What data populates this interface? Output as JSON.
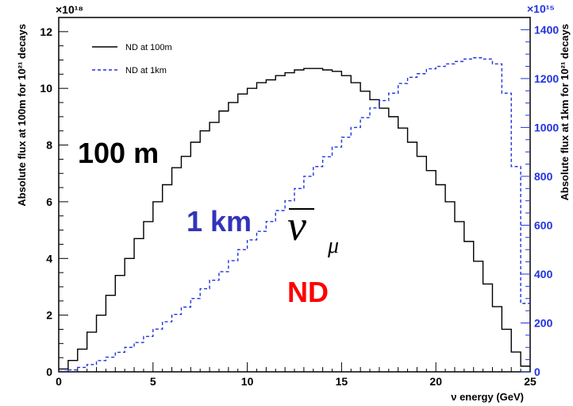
{
  "chart_data": {
    "type": "line",
    "xlabel": "ν energy (GeV)",
    "ylabel": "Absolute flux at 100m for 10²¹ decays",
    "y2label": "Absolute flux at 1km for 10²¹ decays",
    "xlim": [
      0,
      25
    ],
    "ylim": [
      0,
      12.5
    ],
    "y2lim": [
      0,
      1450
    ],
    "y_multiplier": "×10¹⁸",
    "y2_multiplier": "×10¹⁵",
    "x_ticks": [
      "0",
      "5",
      "10",
      "15",
      "20",
      "25"
    ],
    "y_ticks": [
      "0",
      "2",
      "4",
      "6",
      "8",
      "10",
      "12"
    ],
    "y2_ticks": [
      "0",
      "200",
      "400",
      "600",
      "800",
      "1000",
      "1200",
      "1400"
    ],
    "bin_width": 0.5,
    "x": [
      0.25,
      0.75,
      1.25,
      1.75,
      2.25,
      2.75,
      3.25,
      3.75,
      4.25,
      4.75,
      5.25,
      5.75,
      6.25,
      6.75,
      7.25,
      7.75,
      8.25,
      8.75,
      9.25,
      9.75,
      10.25,
      10.75,
      11.25,
      11.75,
      12.25,
      12.75,
      13.25,
      13.75,
      14.25,
      14.75,
      15.25,
      15.75,
      16.25,
      16.75,
      17.25,
      17.75,
      18.25,
      18.75,
      19.25,
      19.75,
      20.25,
      20.75,
      21.25,
      21.75,
      22.25,
      22.75,
      23.25,
      23.75,
      24.25,
      24.75
    ],
    "series": [
      {
        "name": "ND at 100m",
        "axis": "left",
        "color": "#000000",
        "style": "solid",
        "values": [
          0.1,
          0.4,
          0.8,
          1.4,
          2.0,
          2.7,
          3.4,
          4.0,
          4.7,
          5.3,
          6.0,
          6.6,
          7.2,
          7.6,
          8.1,
          8.5,
          8.8,
          9.2,
          9.5,
          9.8,
          10.0,
          10.2,
          10.3,
          10.45,
          10.55,
          10.65,
          10.7,
          10.7,
          10.65,
          10.6,
          10.45,
          10.2,
          9.9,
          9.6,
          9.3,
          9.0,
          8.6,
          8.1,
          7.6,
          7.1,
          6.6,
          6.0,
          5.3,
          4.6,
          3.9,
          3.1,
          2.3,
          1.5,
          0.7,
          0.2
        ]
      },
      {
        "name": "ND at 1km",
        "axis": "right",
        "color": "#2233dd",
        "style": "dashed",
        "values": [
          2,
          8,
          18,
          30,
          46,
          60,
          80,
          100,
          120,
          145,
          175,
          205,
          235,
          265,
          300,
          340,
          375,
          410,
          455,
          500,
          540,
          575,
          615,
          660,
          700,
          750,
          800,
          840,
          880,
          920,
          960,
          1000,
          1040,
          1080,
          1110,
          1140,
          1180,
          1205,
          1220,
          1240,
          1250,
          1260,
          1270,
          1280,
          1285,
          1280,
          1260,
          1140,
          840,
          280
        ]
      }
    ],
    "legend": {
      "position": "top-left"
    },
    "annotations": [
      {
        "text": "100 m",
        "color": "#000000"
      },
      {
        "text": "1 km",
        "color": "#3333bb"
      },
      {
        "text": "ν",
        "sub": "μ",
        "color": "#000000",
        "overline": true
      },
      {
        "text": "ND",
        "color": "#ff0000"
      }
    ]
  }
}
